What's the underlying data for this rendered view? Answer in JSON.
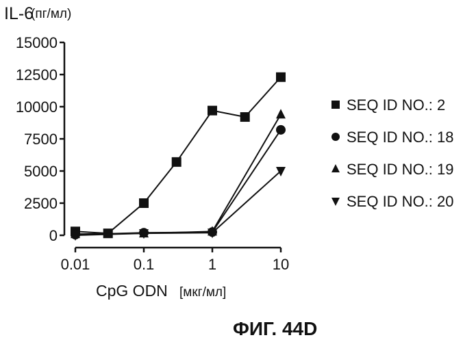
{
  "chart_data": {
    "type": "line",
    "title": "",
    "ylabel": "IL-6",
    "ylabel_unit": "(пг/мл)",
    "xlabel": "CpG ODN",
    "xlabel_unit": "[мкг/мл]",
    "x_scale": "log",
    "xlim": [
      0.01,
      10
    ],
    "ylim": [
      0,
      15000
    ],
    "x_ticks": [
      0.01,
      0.1,
      1,
      10
    ],
    "x_tick_labels": [
      "0.01",
      "0.1",
      "1",
      "10"
    ],
    "y_ticks": [
      0,
      2500,
      5000,
      7500,
      10000,
      12500,
      15000
    ],
    "y_tick_labels": [
      "0",
      "2500",
      "5000",
      "7500",
      "10000",
      "12500",
      "15000"
    ],
    "grid": false,
    "legend_position": "right",
    "series": [
      {
        "name": "SEQ ID NO.: 2",
        "marker": "square",
        "x": [
          0.01,
          0.03,
          0.1,
          0.3,
          1,
          3,
          10
        ],
        "y": [
          300,
          150,
          2500,
          5700,
          9700,
          9200,
          12300
        ]
      },
      {
        "name": "SEQ ID NO.: 18",
        "marker": "circle",
        "x": [
          0.01,
          0.1,
          1,
          10
        ],
        "y": [
          50,
          200,
          250,
          8200
        ]
      },
      {
        "name": "SEQ ID NO.: 19",
        "marker": "triangle-up",
        "x": [
          0.01,
          0.1,
          1,
          10
        ],
        "y": [
          100,
          150,
          300,
          9400
        ]
      },
      {
        "name": "SEQ ID NO.: 20",
        "marker": "triangle-down",
        "x": [
          0.01,
          0.1,
          1,
          10
        ],
        "y": [
          0,
          150,
          200,
          5000
        ]
      }
    ],
    "caption": "ФИГ. 44D"
  }
}
